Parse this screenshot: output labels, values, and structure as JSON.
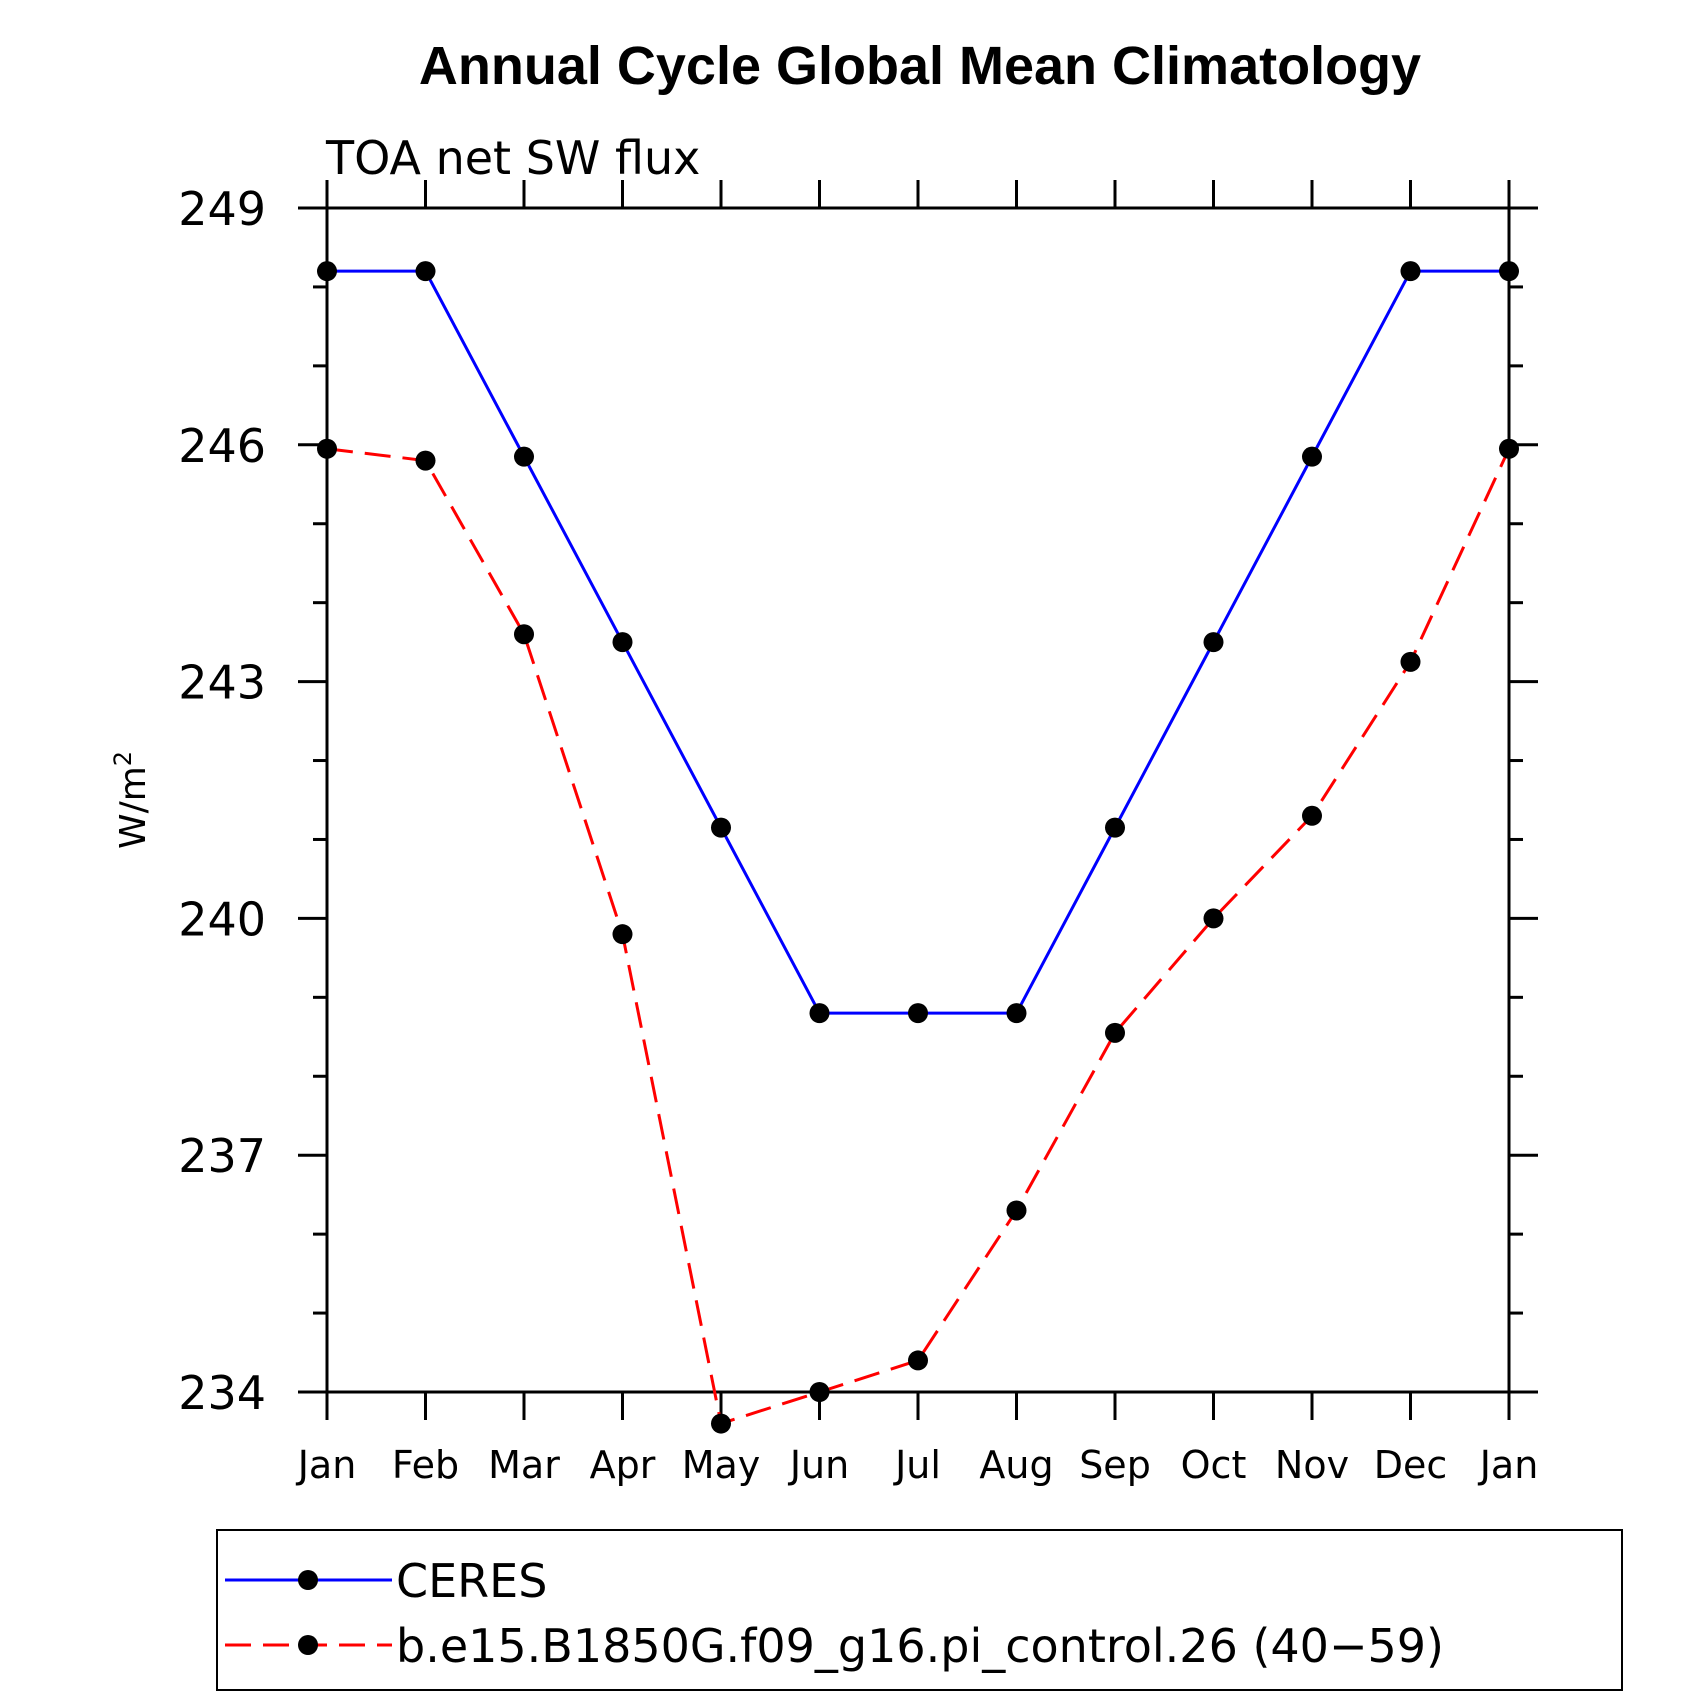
{
  "chart_data": {
    "type": "line",
    "title": "Annual Cycle Global Mean Climatology",
    "subtitle": "TOA net SW flux",
    "ylabel": "W/m",
    "ylabel_superscript": "2",
    "xlabel": "",
    "categories": [
      "Jan",
      "Feb",
      "Mar",
      "Apr",
      "May",
      "Jun",
      "Jul",
      "Aug",
      "Sep",
      "Oct",
      "Nov",
      "Dec",
      "Jan"
    ],
    "ylim": [
      234,
      249
    ],
    "yticks": [
      234,
      237,
      240,
      243,
      246,
      249
    ],
    "yticks_labels": [
      "234",
      "237",
      "240",
      "243",
      "246",
      "249"
    ],
    "y_minor_step": 1,
    "series": [
      {
        "name": "CERES",
        "color": "#0000ff",
        "dash": "solid",
        "values": [
          248.2,
          248.2,
          245.85,
          243.5,
          241.15,
          238.8,
          238.8,
          238.8,
          241.15,
          243.5,
          245.85,
          248.2,
          248.2
        ]
      },
      {
        "name": "b.e15.B1850G.f09_g16.pi_control.26 (40-59)",
        "color": "#ff0000",
        "dash": "dashed",
        "values": [
          245.95,
          245.8,
          243.6,
          239.8,
          233.6,
          234.0,
          234.4,
          236.3,
          238.55,
          240.0,
          241.3,
          243.25,
          245.95
        ]
      }
    ],
    "legend": {
      "position": "bottom",
      "entries": [
        "CERES",
        "b.e15.B1850G.f09_g16.pi_control.26 (40−59)"
      ]
    },
    "marker": "filled-circle",
    "marker_color": "#000000"
  }
}
